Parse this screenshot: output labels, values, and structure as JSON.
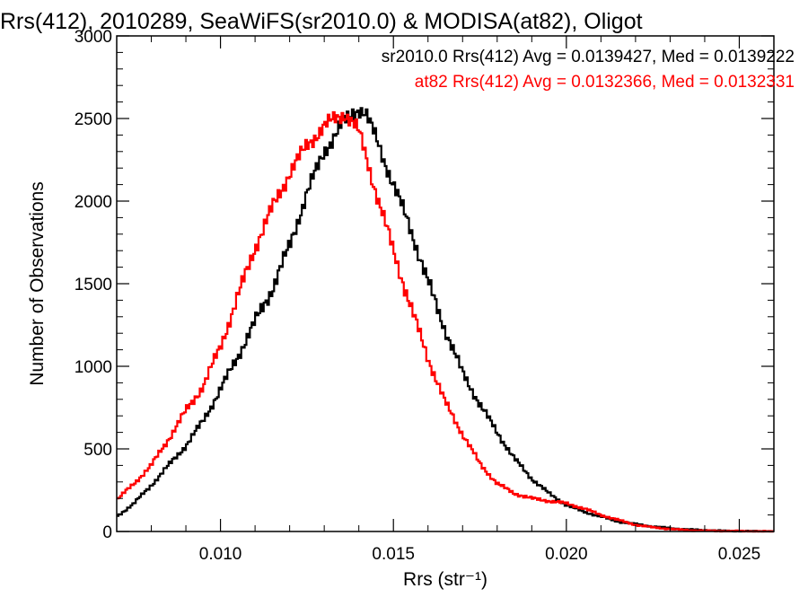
{
  "chart_data": {
    "type": "line",
    "style": "step-histogram",
    "title": "Rrs(412), 2010289, SeaWiFS(sr2010.0) & MODISA(at82), Oligot",
    "xlabel": "Rrs (str⁻¹)",
    "ylabel": "Number of Observations",
    "xlim": [
      0.007,
      0.026
    ],
    "ylim": [
      0,
      3000
    ],
    "xticks": [
      0.01,
      0.015,
      0.02,
      0.025
    ],
    "xtick_labels": [
      "0.010",
      "0.015",
      "0.020",
      "0.025"
    ],
    "yticks": [
      0,
      500,
      1000,
      1500,
      2000,
      2500,
      3000
    ],
    "ytick_labels": [
      "0",
      "500",
      "1000",
      "1500",
      "2000",
      "2500",
      "3000"
    ],
    "grid": false,
    "legend_position": "top-right",
    "series": [
      {
        "name": "sr2010.0 Rrs(412) Avg = 0.0139427, Med = 0.0139222",
        "color": "#000000",
        "x": [
          0.007,
          0.0075,
          0.008,
          0.0085,
          0.009,
          0.0095,
          0.01,
          0.0105,
          0.011,
          0.0115,
          0.012,
          0.0125,
          0.013,
          0.0135,
          0.0138,
          0.014,
          0.0142,
          0.0145,
          0.015,
          0.0155,
          0.016,
          0.0165,
          0.017,
          0.0175,
          0.018,
          0.0185,
          0.019,
          0.0195,
          0.02,
          0.0205,
          0.021,
          0.0215,
          0.022,
          0.0225,
          0.023,
          0.0235,
          0.024,
          0.0245,
          0.025,
          0.0255,
          0.026
        ],
        "y": [
          90,
          170,
          280,
          400,
          520,
          670,
          860,
          1060,
          1270,
          1470,
          1730,
          2050,
          2300,
          2460,
          2530,
          2560,
          2530,
          2380,
          2100,
          1830,
          1510,
          1220,
          960,
          770,
          600,
          440,
          320,
          230,
          160,
          120,
          90,
          60,
          45,
          30,
          20,
          12,
          8,
          4,
          2,
          1,
          0
        ]
      },
      {
        "name": "at82 Rrs(412) Avg = 0.0132366, Med = 0.0132331",
        "color": "#ff0000",
        "x": [
          0.007,
          0.0075,
          0.008,
          0.0085,
          0.009,
          0.0095,
          0.01,
          0.0105,
          0.011,
          0.0115,
          0.012,
          0.0125,
          0.013,
          0.0133,
          0.0136,
          0.0138,
          0.014,
          0.0142,
          0.0145,
          0.015,
          0.0155,
          0.016,
          0.0165,
          0.017,
          0.0175,
          0.018,
          0.0185,
          0.019,
          0.0195,
          0.02,
          0.0205,
          0.021,
          0.0215,
          0.022,
          0.0225,
          0.023,
          0.0235,
          0.024,
          0.025,
          0.026
        ],
        "y": [
          190,
          290,
          400,
          560,
          730,
          880,
          1120,
          1420,
          1720,
          1960,
          2170,
          2340,
          2450,
          2500,
          2530,
          2480,
          2420,
          2280,
          2050,
          1700,
          1360,
          1050,
          780,
          590,
          410,
          290,
          230,
          200,
          185,
          170,
          140,
          100,
          70,
          40,
          25,
          15,
          8,
          4,
          2,
          0
        ]
      }
    ]
  }
}
